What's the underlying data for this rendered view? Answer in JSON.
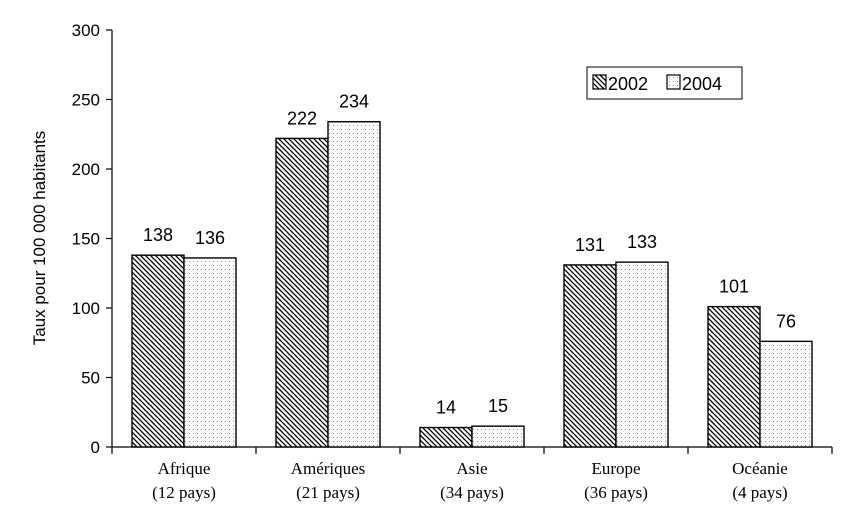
{
  "chart_data": {
    "type": "bar",
    "title": "",
    "xlabel": "",
    "ylabel": "Taux pour 100 000 habitants",
    "ylim": [
      0,
      300
    ],
    "yticks": [
      0,
      50,
      100,
      150,
      200,
      250,
      300
    ],
    "grid": false,
    "legend_position": "top-right",
    "categories": [
      {
        "name": "Afrique",
        "sub": "(12 pays)"
      },
      {
        "name": "Amériques",
        "sub": "(21 pays)"
      },
      {
        "name": "Asie",
        "sub": "(34 pays)"
      },
      {
        "name": "Europe",
        "sub": "(36 pays)"
      },
      {
        "name": "Océanie",
        "sub": "(4 pays)"
      }
    ],
    "series": [
      {
        "name": "2002",
        "pattern": "diagonal-hatch",
        "values": [
          138,
          222,
          14,
          131,
          101
        ]
      },
      {
        "name": "2004",
        "pattern": "dotted",
        "values": [
          136,
          234,
          15,
          133,
          76
        ]
      }
    ]
  }
}
